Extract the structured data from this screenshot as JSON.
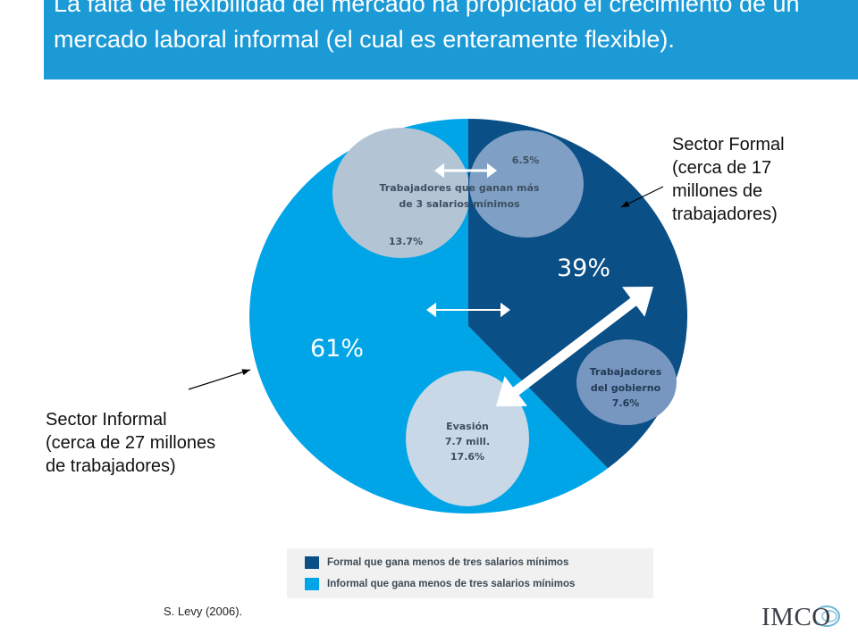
{
  "header": {
    "title": "La falta de flexibilidad del mercado ha propiciado el crecimiento de un mercado laboral informal (el cual es enteramente flexible)."
  },
  "annotations": {
    "formal": [
      "Sector Formal",
      "(cerca de 17",
      "millones de",
      "trabajadores)"
    ],
    "informal": [
      "Sector Informal",
      "(cerca de 27 millones",
      "de trabajadores)"
    ]
  },
  "citation": "S. Levy (2006).",
  "logo": {
    "text": "IMCO"
  },
  "colors": {
    "formal": "#0a4f86",
    "informal": "#00a5e8",
    "header": "#1b9ad6",
    "bubble_left": "#b3c5d5",
    "bubble_right": "#7f9fc5",
    "bubble_gov": "#7797c0",
    "bubble_evasion": "#c8d8e6"
  },
  "chart_data": {
    "type": "pie",
    "title": "",
    "slices": [
      {
        "name": "formal",
        "value": 39,
        "label": "39%",
        "color": "#0a4f86"
      },
      {
        "name": "informal",
        "value": 61,
        "label": "61%",
        "color": "#00a5e8"
      }
    ],
    "legend": {
      "placement": "bottom",
      "entries": [
        {
          "label": "Formal que gana menos de tres salarios mínimos",
          "color": "#0a4f86"
        },
        {
          "label": "Informal que gana menos de tres salarios mínimos",
          "color": "#00a5e8"
        }
      ]
    },
    "sub_groups": [
      {
        "name": "high_earners",
        "lines": [
          "Trabajadores que ganan más",
          "de 3 salarios mínimos"
        ],
        "values": [
          "13.7%",
          "6.5%"
        ]
      },
      {
        "name": "government",
        "lines": [
          "Trabajadores",
          "del gobierno",
          "7.6%"
        ]
      },
      {
        "name": "evasion",
        "lines": [
          "Evasión",
          "7.7 mill.",
          "17.6%"
        ]
      }
    ]
  }
}
